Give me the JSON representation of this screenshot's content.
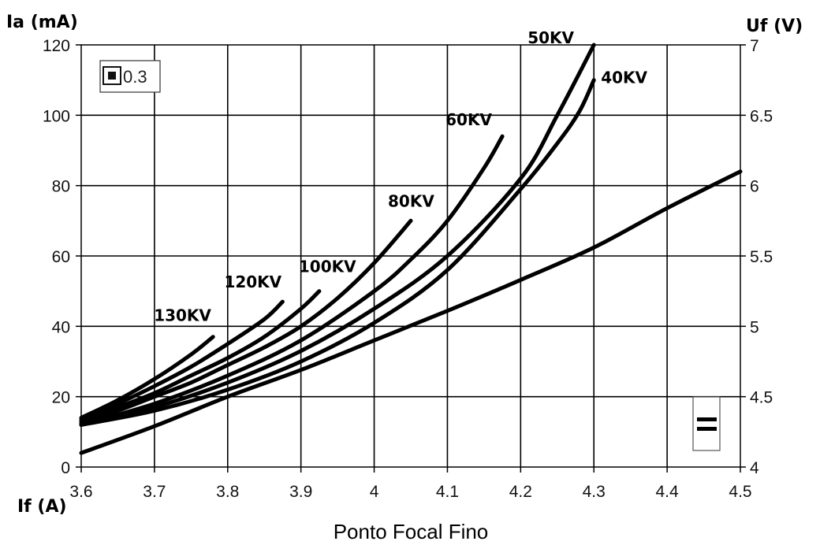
{
  "chart_data": {
    "type": "line",
    "caption": "Ponto Focal Fino",
    "xlabel": "If (A)",
    "ylabel_left": "Ia (mA)",
    "ylabel_right": "Uf (V)",
    "xlim": [
      3.6,
      4.5
    ],
    "ylim_left": [
      0,
      120
    ],
    "ylim_right": [
      4,
      7
    ],
    "x_ticks": [
      "3.6",
      "3.7",
      "3.8",
      "3.9",
      "4",
      "4.1",
      "4.2",
      "4.3",
      "4.4",
      "4.5"
    ],
    "y_left_ticks": [
      "0",
      "20",
      "40",
      "60",
      "80",
      "100",
      "120"
    ],
    "y_right_ticks": [
      "4",
      "4.5",
      "5",
      "5.5",
      "6",
      "6.5",
      "7"
    ],
    "grid": true,
    "legend_box": {
      "label": "0.3",
      "icon": "focal-spot-square-icon"
    },
    "marker_box": {
      "symbol": "=",
      "icon": "equals-icon"
    },
    "series": [
      {
        "name": "130KV",
        "axis": "left",
        "x": [
          3.6,
          3.65,
          3.7,
          3.75,
          3.78
        ],
        "y": [
          14,
          19,
          25,
          32,
          37
        ]
      },
      {
        "name": "120KV",
        "axis": "left",
        "x": [
          3.6,
          3.65,
          3.7,
          3.75,
          3.8,
          3.85,
          3.875
        ],
        "y": [
          13.5,
          18,
          23,
          28.5,
          35,
          42,
          47
        ]
      },
      {
        "name": "100KV",
        "axis": "left",
        "x": [
          3.6,
          3.65,
          3.7,
          3.75,
          3.8,
          3.85,
          3.9,
          3.925
        ],
        "y": [
          13,
          17,
          21,
          26,
          31,
          37,
          45,
          50
        ]
      },
      {
        "name": "80KV",
        "axis": "left",
        "x": [
          3.6,
          3.65,
          3.7,
          3.75,
          3.8,
          3.85,
          3.9,
          3.95,
          4.0,
          4.05
        ],
        "y": [
          12.5,
          16,
          20,
          24,
          29,
          34,
          40,
          48,
          58,
          70
        ]
      },
      {
        "name": "60KV",
        "axis": "left",
        "x": [
          3.6,
          3.7,
          3.8,
          3.9,
          4.0,
          4.05,
          4.1,
          4.15,
          4.175
        ],
        "y": [
          12,
          18,
          26,
          36,
          50,
          59,
          70,
          85,
          94
        ]
      },
      {
        "name": "50KV",
        "axis": "left",
        "x": [
          3.6,
          3.7,
          3.8,
          3.9,
          4.0,
          4.1,
          4.2,
          4.25,
          4.3
        ],
        "y": [
          12,
          17,
          24,
          33,
          45,
          60,
          82,
          100,
          120
        ]
      },
      {
        "name": "40KV",
        "axis": "left",
        "x": [
          3.6,
          3.7,
          3.8,
          3.9,
          4.0,
          4.1,
          4.2,
          4.25,
          4.28,
          4.3
        ],
        "y": [
          12,
          16,
          22,
          30,
          41,
          56,
          79,
          92,
          101,
          110
        ]
      },
      {
        "name": "",
        "axis": "right",
        "x": [
          3.6,
          3.7,
          3.8,
          3.9,
          4.0,
          4.1,
          4.2,
          4.3,
          4.4,
          4.5
        ],
        "y": [
          4.1,
          4.29,
          4.5,
          4.69,
          4.9,
          5.11,
          5.33,
          5.56,
          5.84,
          6.1
        ]
      }
    ]
  }
}
